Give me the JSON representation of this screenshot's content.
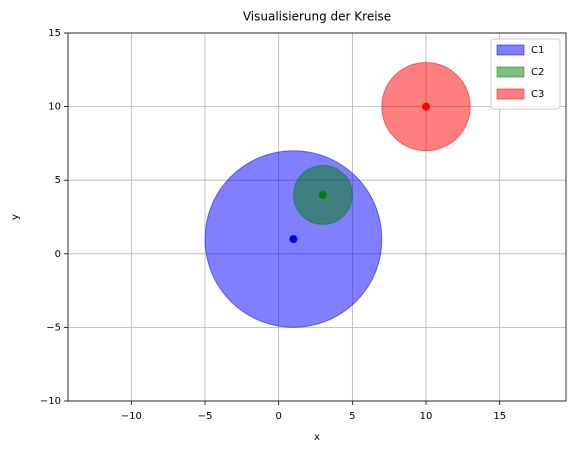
{
  "chart_data": {
    "type": "circles",
    "title": "Visualisierung der Kreise",
    "xlabel": "x",
    "ylabel": "y",
    "xlim": [
      -14.3,
      19.5
    ],
    "ylim": [
      -10,
      15
    ],
    "xticks": [
      {
        "value": -10,
        "label": "−10"
      },
      {
        "value": -5,
        "label": "−5"
      },
      0,
      5,
      10,
      15
    ],
    "yticks": [
      {
        "value": -10,
        "label": "−10"
      },
      {
        "value": -5,
        "label": "−5"
      },
      0,
      5,
      10,
      15
    ],
    "grid": true,
    "legend": "upper right",
    "series": [
      {
        "name": "C1",
        "color": "blue",
        "x": 1,
        "y": 1,
        "r": 6
      },
      {
        "name": "C2",
        "color": "green",
        "x": 3,
        "y": 4,
        "r": 2
      },
      {
        "name": "C3",
        "color": "red",
        "x": 10,
        "y": 10,
        "r": 3
      }
    ]
  }
}
